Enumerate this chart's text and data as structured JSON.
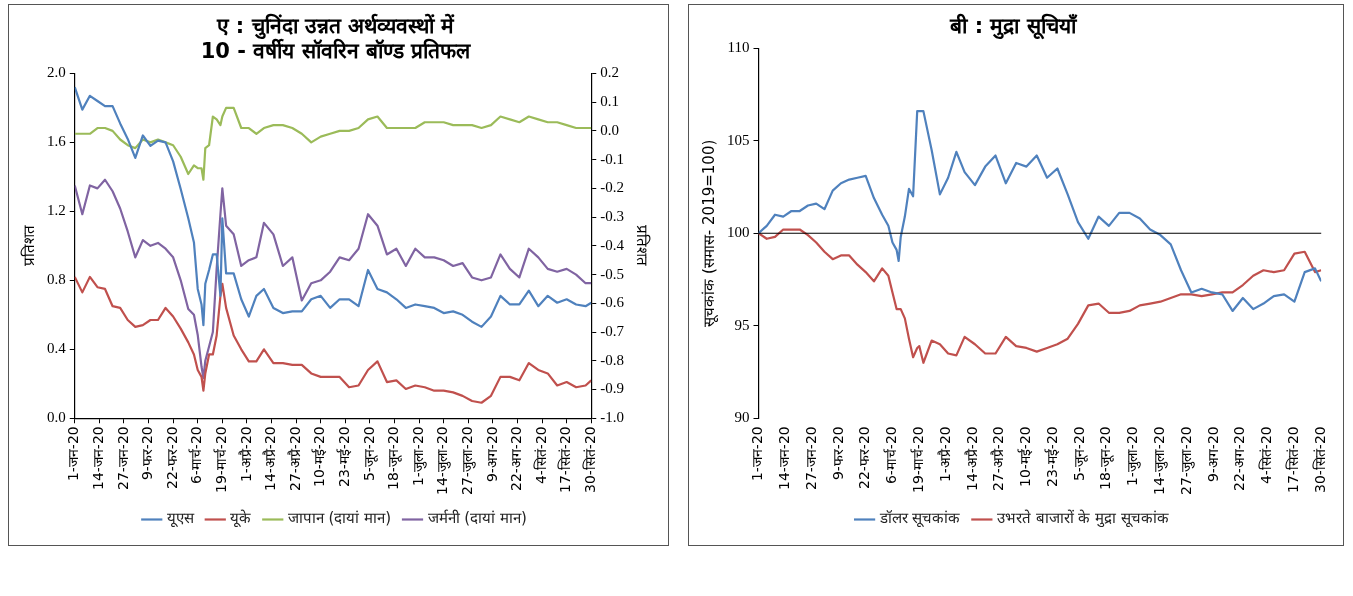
{
  "chart_data": [
    {
      "type": "line",
      "title": "ए : चुनिंदा उन्नत अर्थव्यवस्थों में\n10 - वर्षीय सॉवरिन बॉण्ड प्रतिफल",
      "ylabel": "प्रतिशत",
      "y2label": "प्रतिशत",
      "legend": "bottom",
      "marker": "none",
      "line_style": "solid",
      "x": [
        "--01-01",
        "--01-05",
        "--01-09",
        "--01-13",
        "--01-17",
        "--01-21",
        "--01-25",
        "--01-29",
        "--02-02",
        "--02-06",
        "--02-10",
        "--02-14",
        "--02-18",
        "--02-22",
        "--02-26",
        "--03-01",
        "--03-04",
        "--03-06",
        "--03-08",
        "--03-09",
        "--03-10",
        "--03-12",
        "--03-14",
        "--03-16",
        "--03-18",
        "--03-19",
        "--03-21",
        "--03-25",
        "--03-29",
        "--04-02",
        "--04-06",
        "--04-10",
        "--04-15",
        "--04-20",
        "--04-25",
        "--04-30",
        "--05-05",
        "--05-10",
        "--05-15",
        "--05-20",
        "--05-25",
        "--05-30",
        "--06-04",
        "--06-09",
        "--06-14",
        "--06-19",
        "--06-24",
        "--06-29",
        "--07-04",
        "--07-09",
        "--07-14",
        "--07-19",
        "--07-24",
        "--07-29",
        "--08-03",
        "--08-08",
        "--08-13",
        "--08-18",
        "--08-23",
        "--08-28",
        "--09-02",
        "--09-07",
        "--09-12",
        "--09-17",
        "--09-22",
        "--09-27",
        "--09-30"
      ],
      "xlim": [
        "--01-01",
        "--09-30"
      ],
      "xticks": [
        {
          "value": "--01-01",
          "label": "1-जन-20"
        },
        {
          "value": "--01-14",
          "label": "14-जन-20"
        },
        {
          "value": "--01-27",
          "label": "27-जन-20"
        },
        {
          "value": "--02-09",
          "label": "9-फर-20"
        },
        {
          "value": "--02-22",
          "label": "22-फर-20"
        },
        {
          "value": "--03-06",
          "label": "6-मार्च-20"
        },
        {
          "value": "--03-19",
          "label": "19-मार्च-20"
        },
        {
          "value": "--04-01",
          "label": "1-अप्रै-20"
        },
        {
          "value": "--04-14",
          "label": "14-अप्रै-20"
        },
        {
          "value": "--04-27",
          "label": "27-अप्रै-20"
        },
        {
          "value": "--05-10",
          "label": "10-मई-20"
        },
        {
          "value": "--05-23",
          "label": "23-मई-20"
        },
        {
          "value": "--06-05",
          "label": "5-जून-20"
        },
        {
          "value": "--06-18",
          "label": "18-जून-20"
        },
        {
          "value": "--07-01",
          "label": "1-जुला-20"
        },
        {
          "value": "--07-14",
          "label": "14-जुला-20"
        },
        {
          "value": "--07-27",
          "label": "27-जुला-20"
        },
        {
          "value": "--08-09",
          "label": "9-अग-20"
        },
        {
          "value": "--08-22",
          "label": "22-अग-20"
        },
        {
          "value": "--09-04",
          "label": "4-सितं-20"
        },
        {
          "value": "--09-17",
          "label": "17-सितं-20"
        },
        {
          "value": "--09-30",
          "label": "30-सितं-20"
        }
      ],
      "ylim": [
        0,
        2
      ],
      "yticks": [
        {
          "value": 0,
          "label": "0.0"
        },
        {
          "value": 0.4,
          "label": "0.4"
        },
        {
          "value": 0.8,
          "label": "0.8"
        },
        {
          "value": 1.2,
          "label": "1.2"
        },
        {
          "value": 1.6,
          "label": "1.6"
        },
        {
          "value": 2,
          "label": "2.0"
        }
      ],
      "y2lim": [
        -1,
        0.2
      ],
      "y2ticks": [
        {
          "value": -1,
          "label": "-1.0"
        },
        -0.9,
        -0.8,
        -0.7,
        -0.6,
        -0.5,
        -0.4,
        -0.3,
        -0.2,
        -0.1,
        {
          "value": 0,
          "label": "0.0"
        },
        0.1,
        0.2
      ],
      "series": [
        {
          "name": "यूएस",
          "color": "#4f81bd",
          "values": [
            1.92,
            1.79,
            1.87,
            1.84,
            1.81,
            1.81,
            1.71,
            1.62,
            1.51,
            1.64,
            1.58,
            1.61,
            1.6,
            1.49,
            1.33,
            1.16,
            1.02,
            0.75,
            0.66,
            0.54,
            0.78,
            0.86,
            0.95,
            0.95,
            0.71,
            1.16,
            0.84,
            0.84,
            0.69,
            0.59,
            0.71,
            0.75,
            0.64,
            0.61,
            0.62,
            0.62,
            0.69,
            0.71,
            0.64,
            0.69,
            0.69,
            0.65,
            0.86,
            0.75,
            0.73,
            0.69,
            0.64,
            0.66,
            0.65,
            0.64,
            0.61,
            0.62,
            0.6,
            0.56,
            0.53,
            0.59,
            0.71,
            0.66,
            0.66,
            0.74,
            0.65,
            0.71,
            0.67,
            0.69,
            0.66,
            0.65,
            0.67
          ]
        },
        {
          "name": "यूके",
          "color": "#c0504d",
          "values": [
            0.82,
            0.73,
            0.82,
            0.76,
            0.75,
            0.65,
            0.64,
            0.57,
            0.53,
            0.54,
            0.57,
            0.57,
            0.64,
            0.59,
            0.52,
            0.44,
            0.37,
            0.28,
            0.24,
            0.16,
            0.26,
            0.37,
            0.37,
            0.48,
            0.71,
            0.78,
            0.64,
            0.48,
            0.4,
            0.33,
            0.33,
            0.4,
            0.32,
            0.32,
            0.31,
            0.31,
            0.26,
            0.24,
            0.24,
            0.24,
            0.18,
            0.19,
            0.28,
            0.33,
            0.21,
            0.22,
            0.17,
            0.19,
            0.18,
            0.16,
            0.16,
            0.15,
            0.13,
            0.1,
            0.09,
            0.13,
            0.24,
            0.24,
            0.22,
            0.32,
            0.28,
            0.26,
            0.19,
            0.21,
            0.18,
            0.19,
            0.22
          ]
        },
        {
          "name": "जापान (दायां मान)",
          "color": "#9bbb59",
          "axis": "y2",
          "values": [
            -0.01,
            -0.01,
            -0.01,
            0.01,
            0.01,
            0.0,
            -0.03,
            -0.05,
            -0.06,
            -0.03,
            -0.04,
            -0.03,
            -0.04,
            -0.05,
            -0.09,
            -0.15,
            -0.12,
            -0.13,
            -0.13,
            -0.17,
            -0.06,
            -0.05,
            0.05,
            0.04,
            0.02,
            0.05,
            0.08,
            0.08,
            0.01,
            0.01,
            -0.01,
            0.01,
            0.02,
            0.02,
            0.01,
            -0.01,
            -0.04,
            -0.02,
            -0.01,
            0.0,
            0.0,
            0.01,
            0.04,
            0.05,
            0.01,
            0.01,
            0.01,
            0.01,
            0.03,
            0.03,
            0.03,
            0.02,
            0.02,
            0.02,
            0.01,
            0.02,
            0.05,
            0.04,
            0.03,
            0.05,
            0.04,
            0.03,
            0.03,
            0.02,
            0.01,
            0.01,
            0.01
          ]
        },
        {
          "name": "जर्मनी (दायां मान)",
          "color": "#8064a2",
          "axis": "y2",
          "values": [
            -0.19,
            -0.29,
            -0.19,
            -0.2,
            -0.17,
            -0.21,
            -0.27,
            -0.35,
            -0.44,
            -0.38,
            -0.4,
            -0.39,
            -0.41,
            -0.44,
            -0.52,
            -0.62,
            -0.64,
            -0.71,
            -0.82,
            -0.86,
            -0.8,
            -0.75,
            -0.7,
            -0.48,
            -0.29,
            -0.2,
            -0.33,
            -0.36,
            -0.47,
            -0.45,
            -0.44,
            -0.32,
            -0.36,
            -0.47,
            -0.44,
            -0.59,
            -0.53,
            -0.52,
            -0.49,
            -0.44,
            -0.45,
            -0.41,
            -0.29,
            -0.33,
            -0.43,
            -0.41,
            -0.47,
            -0.41,
            -0.44,
            -0.44,
            -0.45,
            -0.47,
            -0.46,
            -0.51,
            -0.52,
            -0.51,
            -0.43,
            -0.48,
            -0.51,
            -0.41,
            -0.44,
            -0.48,
            -0.49,
            -0.48,
            -0.5,
            -0.53,
            -0.53
          ]
        }
      ]
    },
    {
      "type": "line",
      "title": "बी : मुद्रा सूचियाँ",
      "ylabel": "सूचकांक (समास- 2019=100)",
      "legend": "bottom",
      "marker": "none",
      "line_style": "solid",
      "x": [
        "--01-01",
        "--01-05",
        "--01-09",
        "--01-13",
        "--01-17",
        "--01-21",
        "--01-25",
        "--01-29",
        "--02-02",
        "--02-06",
        "--02-10",
        "--02-14",
        "--02-18",
        "--02-22",
        "--02-26",
        "--03-01",
        "--03-04",
        "--03-06",
        "--03-08",
        "--03-09",
        "--03-10",
        "--03-12",
        "--03-14",
        "--03-16",
        "--03-18",
        "--03-19",
        "--03-21",
        "--03-25",
        "--03-29",
        "--04-02",
        "--04-06",
        "--04-10",
        "--04-15",
        "--04-20",
        "--04-25",
        "--04-30",
        "--05-05",
        "--05-10",
        "--05-15",
        "--05-20",
        "--05-25",
        "--05-30",
        "--06-04",
        "--06-09",
        "--06-14",
        "--06-19",
        "--06-24",
        "--06-29",
        "--07-04",
        "--07-09",
        "--07-14",
        "--07-19",
        "--07-24",
        "--07-29",
        "--08-03",
        "--08-08",
        "--08-13",
        "--08-18",
        "--08-23",
        "--08-28",
        "--09-02",
        "--09-07",
        "--09-12",
        "--09-17",
        "--09-22",
        "--09-27",
        "--09-30"
      ],
      "xlim": [
        "--01-01",
        "--09-30"
      ],
      "xticks": [
        {
          "value": "--01-01",
          "label": "1-जन-20"
        },
        {
          "value": "--01-14",
          "label": "14-जन-20"
        },
        {
          "value": "--01-27",
          "label": "27-जन-20"
        },
        {
          "value": "--02-09",
          "label": "9-फर-20"
        },
        {
          "value": "--02-22",
          "label": "22-फर-20"
        },
        {
          "value": "--03-06",
          "label": "6-मार्च-20"
        },
        {
          "value": "--03-19",
          "label": "19-मार्च-20"
        },
        {
          "value": "--04-01",
          "label": "1-अप्रै-20"
        },
        {
          "value": "--04-14",
          "label": "14-अप्रै-20"
        },
        {
          "value": "--04-27",
          "label": "27-अप्रै-20"
        },
        {
          "value": "--05-10",
          "label": "10-मई-20"
        },
        {
          "value": "--05-23",
          "label": "23-मई-20"
        },
        {
          "value": "--06-05",
          "label": "5-जून-20"
        },
        {
          "value": "--06-18",
          "label": "18-जून-20"
        },
        {
          "value": "--07-01",
          "label": "1-जुला-20"
        },
        {
          "value": "--07-14",
          "label": "14-जुला-20"
        },
        {
          "value": "--07-27",
          "label": "27-जुला-20"
        },
        {
          "value": "--08-09",
          "label": "9-अग-20"
        },
        {
          "value": "--08-22",
          "label": "22-अग-20"
        },
        {
          "value": "--09-04",
          "label": "4-सितं-20"
        },
        {
          "value": "--09-17",
          "label": "17-सितं-20"
        },
        {
          "value": "--09-30",
          "label": "30-सितं-20"
        }
      ],
      "ylim": [
        90,
        110
      ],
      "yticks": [
        90,
        95,
        100,
        105,
        110
      ],
      "ref_lines": [
        {
          "axis": "y",
          "value": 100,
          "color": "#000000"
        }
      ],
      "series": [
        {
          "name": "डॉलर सूचकांक",
          "color": "#4f81bd",
          "values": [
            100.0,
            100.4,
            101.0,
            100.9,
            101.2,
            101.2,
            101.5,
            101.6,
            101.3,
            102.3,
            102.7,
            102.9,
            103.0,
            103.1,
            101.9,
            101.0,
            100.4,
            99.5,
            99.1,
            98.5,
            99.8,
            100.9,
            102.4,
            102.0,
            106.6,
            106.6,
            106.6,
            104.5,
            102.1,
            103.0,
            104.4,
            103.3,
            102.6,
            103.6,
            104.2,
            102.7,
            103.8,
            103.6,
            104.2,
            103.0,
            103.5,
            102.1,
            100.6,
            99.7,
            100.9,
            100.4,
            101.1,
            101.1,
            100.8,
            100.2,
            99.9,
            99.4,
            98.0,
            96.8,
            97.0,
            96.8,
            96.7,
            95.8,
            96.5,
            95.9,
            96.2,
            96.6,
            96.7,
            96.3,
            97.9,
            98.1,
            97.4
          ]
        },
        {
          "name": "उभरते बाजारों के मुद्रा सूचकांक",
          "color": "#c0504d",
          "values": [
            100.0,
            99.7,
            99.8,
            100.2,
            100.2,
            100.2,
            99.9,
            99.5,
            99.0,
            98.6,
            98.8,
            98.8,
            98.3,
            97.9,
            97.4,
            98.1,
            97.7,
            96.8,
            95.9,
            95.9,
            95.9,
            95.4,
            94.3,
            93.3,
            93.8,
            93.9,
            93.0,
            94.2,
            94.0,
            93.5,
            93.4,
            94.4,
            94.0,
            93.5,
            93.5,
            94.4,
            93.9,
            93.8,
            93.6,
            93.8,
            94.0,
            94.3,
            95.1,
            96.1,
            96.2,
            95.7,
            95.7,
            95.8,
            96.1,
            96.2,
            96.3,
            96.5,
            96.7,
            96.7,
            96.6,
            96.7,
            96.8,
            96.8,
            97.2,
            97.7,
            98.0,
            97.9,
            98.0,
            98.9,
            99.0,
            97.9,
            98.0
          ]
        }
      ]
    }
  ]
}
